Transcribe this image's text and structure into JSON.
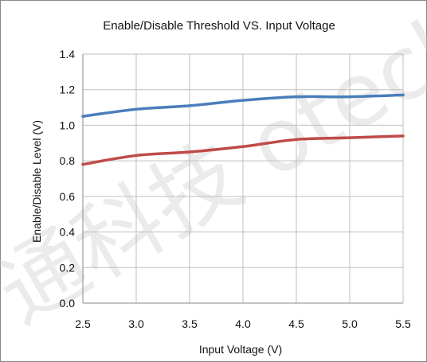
{
  "chart_data": {
    "type": "line",
    "title": "Enable/Disable Threshold  VS. Input Voltage",
    "xlabel": "Input Voltage (V)",
    "ylabel": "Enable/Disable Level  (V)",
    "xlim": [
      2.5,
      5.5
    ],
    "ylim": [
      0.0,
      1.4
    ],
    "xticks": [
      "2.5",
      "3.0",
      "3.5",
      "4.0",
      "4.5",
      "5.0",
      "5.5"
    ],
    "yticks": [
      "0.0",
      "0.2",
      "0.4",
      "0.6",
      "0.8",
      "1.0",
      "1.2",
      "1.4"
    ],
    "grid": true,
    "legend": "none",
    "x": [
      2.5,
      3.0,
      3.5,
      4.0,
      4.5,
      5.0,
      5.5
    ],
    "series": [
      {
        "color": "#4a7ebb",
        "values": [
          1.05,
          1.09,
          1.11,
          1.14,
          1.16,
          1.16,
          1.17
        ]
      },
      {
        "color": "#be4b48",
        "values": [
          0.78,
          0.83,
          0.85,
          0.88,
          0.92,
          0.93,
          0.94
        ]
      }
    ]
  },
  "watermark": {
    "text": "通科技 otech.co"
  }
}
